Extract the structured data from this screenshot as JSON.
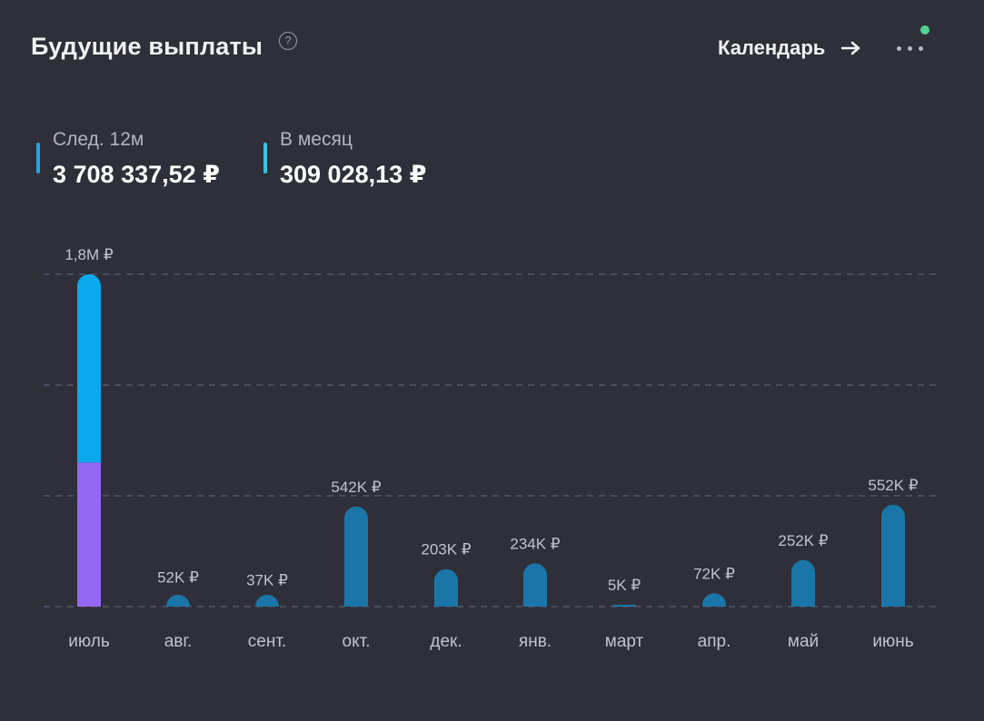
{
  "header": {
    "title": "Будущие выплаты",
    "help_icon": "question-circle-icon",
    "help_glyph": "?",
    "calendar_label": "Календарь",
    "arrow_icon": "arrow-right-icon",
    "more_icon": "more-horizontal-icon",
    "notification_color": "#4fd18b"
  },
  "stats": [
    {
      "label": "След. 12м",
      "value": "3 708 337,52 ₽",
      "color": "#1ea7ea"
    },
    {
      "label": "В месяц",
      "value": "309 028,13 ₽",
      "color": "#39c2d9"
    }
  ],
  "chart_data": {
    "type": "bar",
    "categories": [
      "июль",
      "авг.",
      "сент.",
      "окт.",
      "дек.",
      "янв.",
      "март",
      "апр.",
      "май",
      "июнь"
    ],
    "values": [
      1800000,
      52000,
      37000,
      542000,
      203000,
      234000,
      5000,
      72000,
      252000,
      552000
    ],
    "data_labels": [
      "1,8M ₽",
      "52K ₽",
      "37K ₽",
      "542K ₽",
      "203K ₽",
      "234K ₽",
      "5K ₽",
      "72K ₽",
      "252K ₽",
      "552K ₽"
    ],
    "stacked_first_bar": {
      "lower": 780000,
      "upper": 1020000
    },
    "ylim": [
      0,
      1800000
    ],
    "grid": true,
    "gridlines": [
      0,
      600000,
      1200000,
      1800000
    ],
    "colors": {
      "bar": "#1a76a8",
      "stack_upper": "#0aa9ee",
      "stack_lower": "#9567f3",
      "grid": "#55556a"
    },
    "xlabel": "",
    "ylabel": ""
  }
}
